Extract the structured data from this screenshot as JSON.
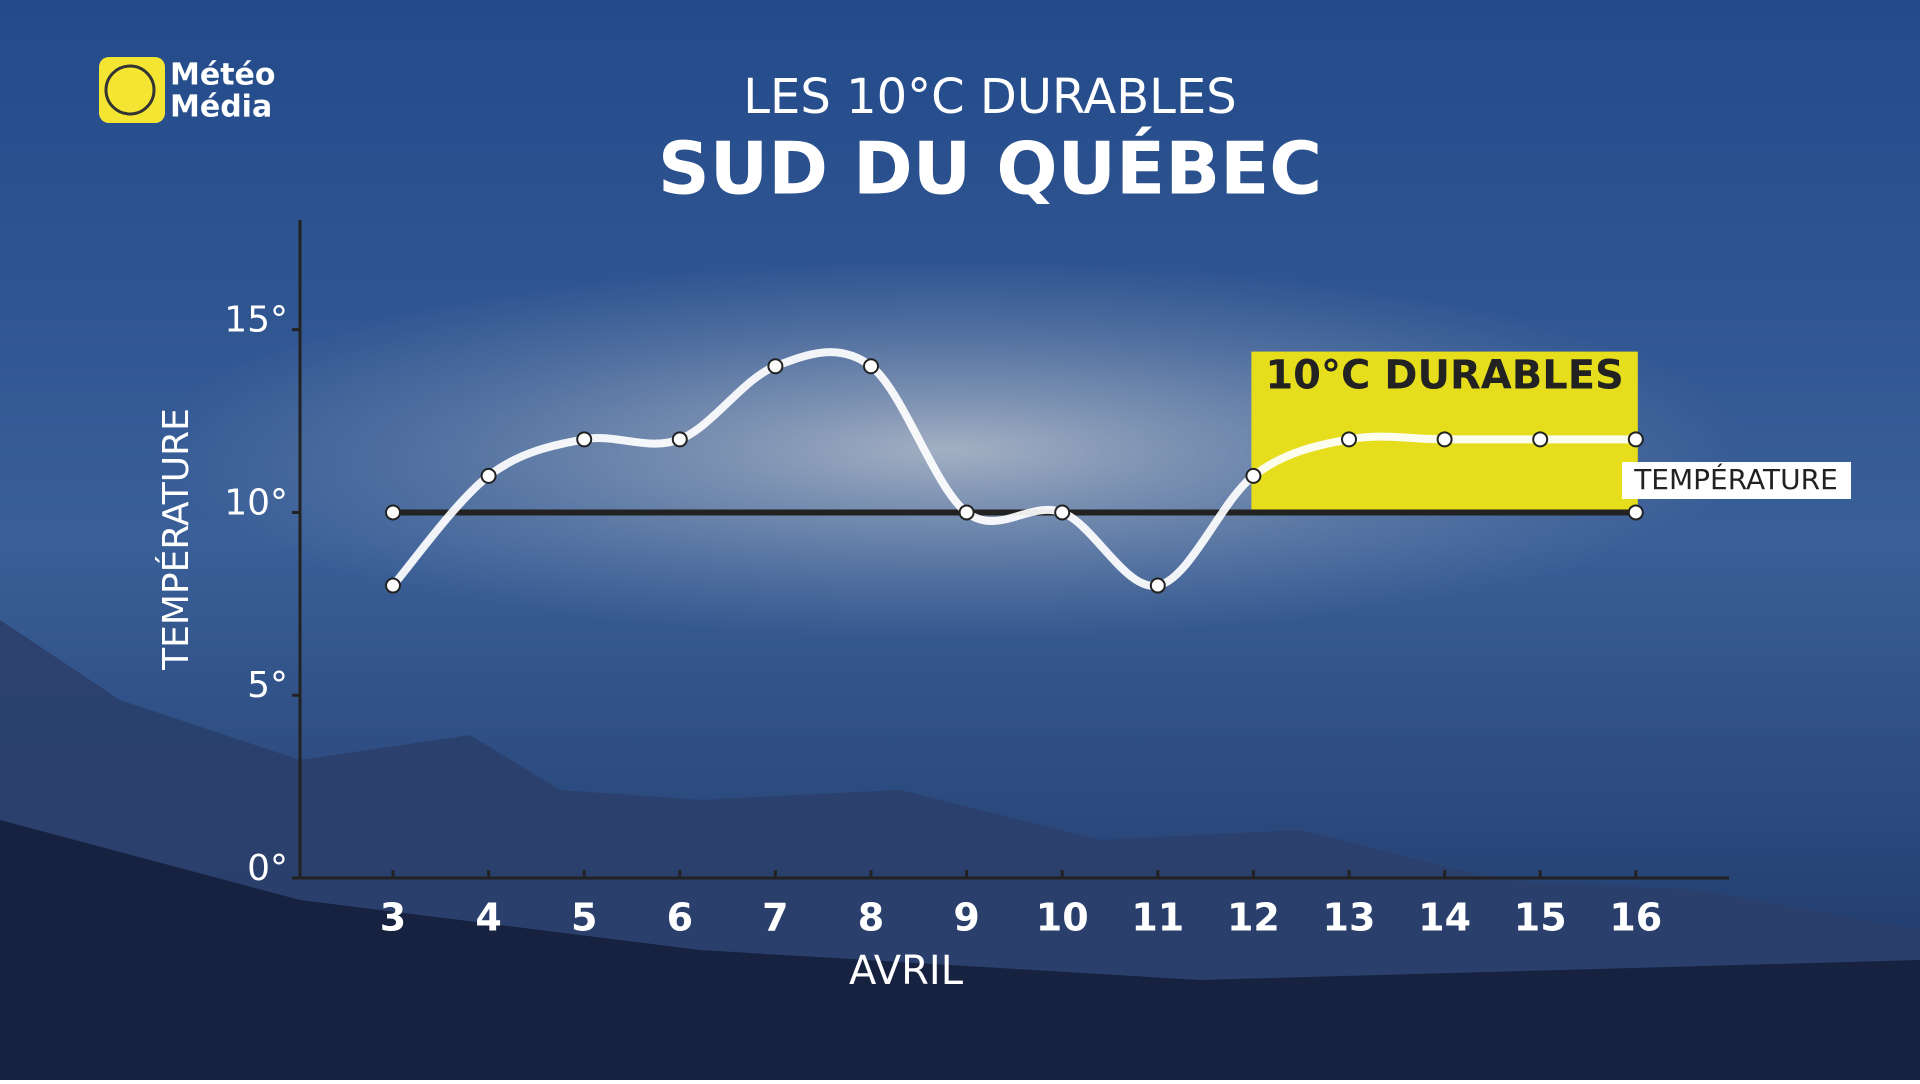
{
  "brand": [
    "Météo",
    "Média"
  ],
  "chart_data": {
    "type": "line",
    "title": "LES 10°C DURABLES",
    "subtitle": "SUD DU QUÉBEC",
    "y_label": "TEMPÉRATURE",
    "x_label": "AVRIL",
    "categories": [
      "3",
      "4",
      "5",
      "6",
      "7",
      "8",
      "9",
      "10",
      "11",
      "12",
      "13",
      "14",
      "15",
      "16"
    ],
    "series": [
      {
        "name": "TEMPÉRATURE",
        "color": "#ffffff",
        "values": [
          8,
          11,
          12,
          12,
          14,
          14,
          10,
          10,
          8,
          11,
          12,
          12,
          12,
          12
        ]
      }
    ],
    "threshold": {
      "value": 10,
      "color": "#222222"
    },
    "highlight": {
      "label": "10°C DURABLES",
      "x_range": [
        "12",
        "16"
      ],
      "y_range": [
        10,
        14.4
      ],
      "color": "#e6de1c"
    },
    "ylim": [
      0,
      18
    ],
    "yticks": [
      {
        "value": 0,
        "label": "0°"
      },
      {
        "value": 5,
        "label": "5°"
      },
      {
        "value": 10,
        "label": "10°"
      },
      {
        "value": 15,
        "label": "15°"
      }
    ],
    "grid": false
  }
}
